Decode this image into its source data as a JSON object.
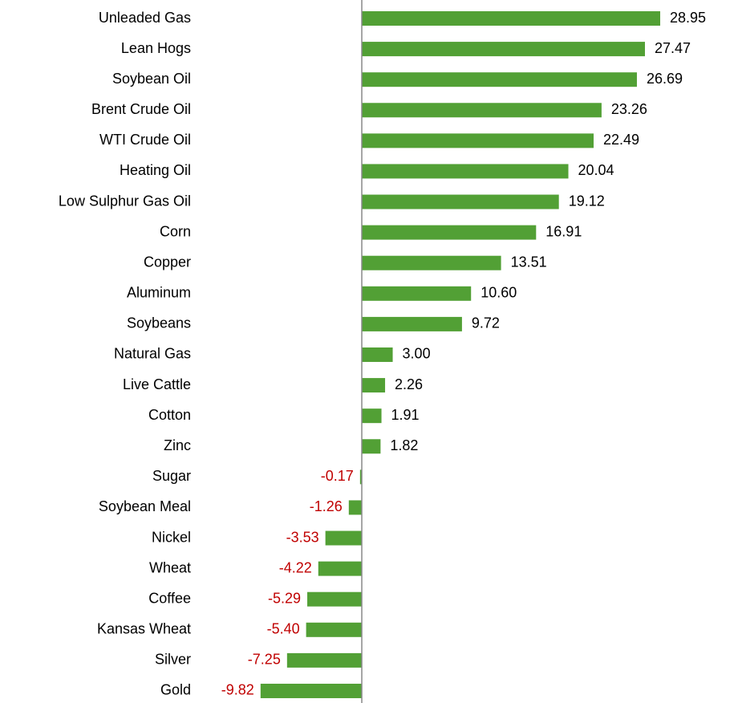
{
  "chart_data": {
    "type": "bar",
    "orientation": "horizontal",
    "categories": [
      "Unleaded Gas",
      "Lean Hogs",
      "Soybean Oil",
      "Brent Crude Oil",
      "WTI Crude Oil",
      "Heating Oil",
      "Low Sulphur Gas Oil",
      "Corn",
      "Copper",
      "Aluminum",
      "Soybeans",
      "Natural Gas",
      "Live Cattle",
      "Cotton",
      "Zinc",
      "Sugar",
      "Soybean Meal",
      "Nickel",
      "Wheat",
      "Coffee",
      "Kansas Wheat",
      "Silver",
      "Gold"
    ],
    "values": [
      28.95,
      27.47,
      26.69,
      23.26,
      22.49,
      20.04,
      19.12,
      16.91,
      13.51,
      10.6,
      9.72,
      3.0,
      2.26,
      1.91,
      1.82,
      -0.17,
      -1.26,
      -3.53,
      -4.22,
      -5.29,
      -5.4,
      -7.25,
      -9.82
    ],
    "value_labels": [
      "28.95",
      "27.47",
      "26.69",
      "23.26",
      "22.49",
      "20.04",
      "19.12",
      "16.91",
      "13.51",
      "10.60",
      "9.72",
      "3.00",
      "2.26",
      "1.91",
      "1.82",
      "-0.17",
      "-1.26",
      "-3.53",
      "-4.22",
      "-5.29",
      "-5.40",
      "-7.25",
      "-9.82"
    ],
    "color": "#52a035",
    "label_color": "#000000",
    "negative_label_color": "#c00000",
    "xlim": [
      -10,
      30
    ]
  }
}
